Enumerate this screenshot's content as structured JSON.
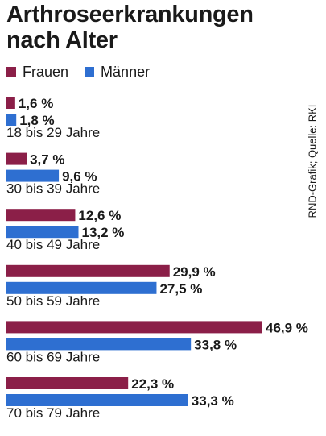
{
  "chart_data": {
    "type": "bar",
    "orientation": "horizontal",
    "title": "Arthroseerkrankungen nach Alter",
    "source": "RND-Grafik; Quelle: RKI",
    "categories": [
      "18 bis 29 Jahre",
      "30 bis 39 Jahre",
      "40 bis 49 Jahre",
      "50 bis 59 Jahre",
      "60 bis 69 Jahre",
      "70 bis 79 Jahre"
    ],
    "series": [
      {
        "name": "Frauen",
        "color": "#8b1f48",
        "values": [
          1.6,
          3.7,
          12.6,
          29.9,
          46.9,
          22.3
        ],
        "value_labels": [
          "1,6 %",
          "3,7 %",
          "12,6 %",
          "29,9 %",
          "46,9 %",
          "22,3 %"
        ]
      },
      {
        "name": "Männer",
        "color": "#2e6fd1",
        "values": [
          1.8,
          9.6,
          13.2,
          27.5,
          33.8,
          33.3
        ],
        "value_labels": [
          "1,8 %",
          "9,6 %",
          "13,2 %",
          "27,5 %",
          "33,8 %",
          "33,3 %"
        ]
      }
    ],
    "xlim": [
      0,
      46.9
    ],
    "grid": false,
    "legend_position": "top-left"
  }
}
